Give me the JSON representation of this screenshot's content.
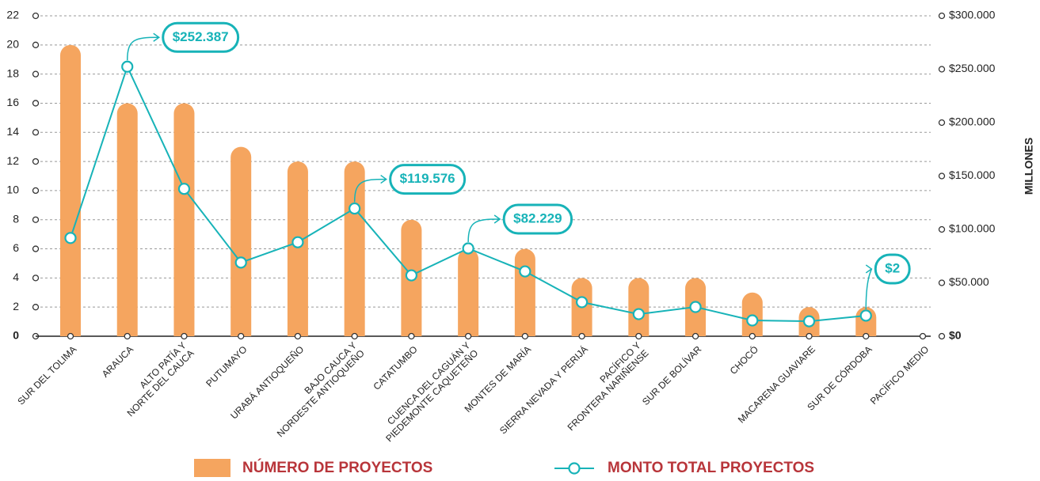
{
  "chart_data": {
    "type": "bar",
    "categories": [
      "SUR DEL TOLIMA",
      "ARAUCA",
      "ALTO PATÍA Y\nNORTE DEL CAUCA",
      "PUTUMAYO",
      "URABÁ ANTIOQUEÑO",
      "BAJO CAUCA Y\nNORDESTE ANTIOQUEÑO",
      "CATATUMBO",
      "CUENCA DEL CAGUÁN Y\nPIEDEMONTE CAQUETEÑO",
      "MONTES DE MARÍA",
      "SIERRA NEVADA Y PERIJÁ",
      "PACÍFICO Y\nFRONTERA NARIÑENSE",
      "SUR DE BOLÍVAR",
      "CHOCÓ",
      "MACARENA GUAVIARE",
      "SUR DE CÓRDOBA",
      "PACÍFICO MEDIO"
    ],
    "series": [
      {
        "name": "NÚMERO DE PROYECTOS",
        "type": "bar",
        "color": "#f5a55f",
        "values": [
          20,
          16,
          16,
          13,
          12,
          12,
          8,
          6,
          6,
          4,
          4,
          4,
          3,
          2,
          2,
          0
        ]
      },
      {
        "name": "MONTO TOTAL PROYECTOS",
        "type": "line",
        "axis": "y2",
        "color": "#17b3b8",
        "values": [
          92000,
          252387,
          138000,
          69000,
          88000,
          119576,
          57000,
          82229,
          60700,
          31900,
          20700,
          27400,
          14800,
          14000,
          19300,
          null
        ],
        "value_labels": [
          null,
          "$252.387",
          null,
          null,
          null,
          "$119.576",
          null,
          "$82.229",
          null,
          null,
          null,
          null,
          null,
          null,
          null,
          null
        ]
      }
    ],
    "annotation": "$2",
    "ylim": [
      0,
      22
    ],
    "yticks": [
      0,
      2,
      4,
      6,
      8,
      10,
      12,
      14,
      16,
      18,
      20,
      22
    ],
    "y2lim": [
      0,
      300000
    ],
    "y2ticks": [
      {
        "value": 0,
        "label": "$0"
      },
      {
        "value": 50000,
        "label": "$50.000"
      },
      {
        "value": 100000,
        "label": "$100.000"
      },
      {
        "value": 150000,
        "label": "$150.000"
      },
      {
        "value": 200000,
        "label": "$200.000"
      },
      {
        "value": 250000,
        "label": "$250.000"
      },
      {
        "value": 300000,
        "label": "$300.000"
      }
    ],
    "y2_label": "MILLONES",
    "grid": true
  }
}
